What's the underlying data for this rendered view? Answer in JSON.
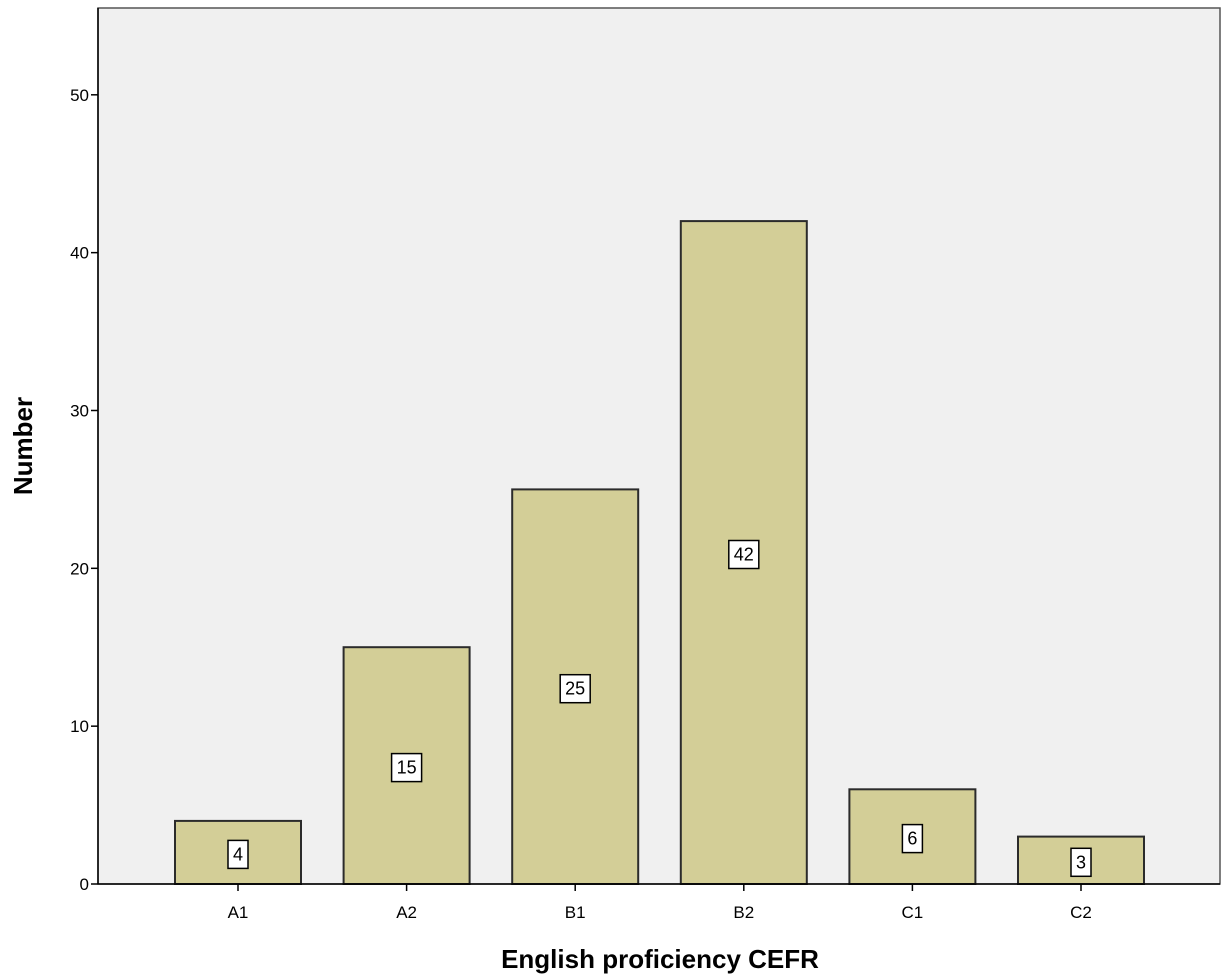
{
  "chart_data": {
    "type": "bar",
    "title": "",
    "xlabel": "English proficiency CEFR",
    "ylabel": "Number",
    "categories": [
      "A1",
      "A2",
      "B1",
      "B2",
      "C1",
      "C2"
    ],
    "values": [
      4,
      15,
      25,
      42,
      6,
      3
    ],
    "data_labels": [
      "4",
      "15",
      "25",
      "42",
      "6",
      "3"
    ],
    "ylim": [
      0,
      55.5
    ],
    "yticks": [
      0,
      10,
      20,
      30,
      40,
      50
    ],
    "grid": false,
    "legend": "none"
  },
  "colors": {
    "plot_background": "#f0f0f0",
    "bar_fill": "#d3ce97",
    "bar_edge": "#2b2b2b",
    "label_box": "#ffffff",
    "text": "#000000"
  }
}
